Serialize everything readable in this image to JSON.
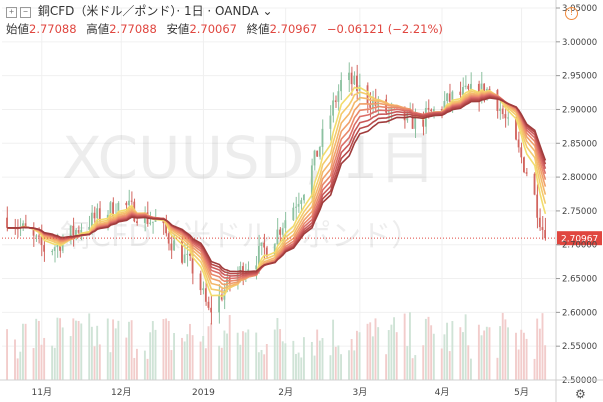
{
  "header": {
    "title": "銅CFD（米ドル／ポンド）· 1日 · OANDA",
    "timeframe_caret": "⌄",
    "ohlc": [
      {
        "label": "始値",
        "value": "2.77088"
      },
      {
        "label": "高値",
        "value": "2.77088"
      },
      {
        "label": "安値",
        "value": "2.70067"
      },
      {
        "label": "終値",
        "value": "2.70967"
      }
    ],
    "change": "−0.06121 (−2.21%)",
    "button_plus": "+",
    "button_minus": "−",
    "alert_glyph": "!"
  },
  "watermark": {
    "symbol": "XCUUSD",
    "interval": "1日",
    "name": "銅CFD（米ドル／ポンド）"
  },
  "price_axis": {
    "ticks": [
      "3.05000",
      "3.00000",
      "2.95000",
      "2.90000",
      "2.85000",
      "2.80000",
      "2.75000",
      "2.70000",
      "2.65000",
      "2.60000",
      "2.55000",
      "2.50000"
    ],
    "last_price_label": "2.70967"
  },
  "time_axis": {
    "ticks": [
      "11月",
      "12月",
      "2019",
      "2月",
      "3月",
      "4月",
      "5月"
    ]
  },
  "settings_icon": "⚙",
  "colors": {
    "up": "#8cc1a0",
    "down": "#d2655f",
    "volume_up": "#cfe3d6",
    "volume_down": "#f2cccb",
    "last_price": "#e0463f",
    "ma_ribbon": [
      "#f2dc6d",
      "#f4cb6c",
      "#f4b86c",
      "#f0a06b",
      "#e9886b",
      "#dc6e68",
      "#c95a5a",
      "#b84a4a",
      "#a03c3c"
    ]
  },
  "chart_data": {
    "type": "candlestick",
    "x": [
      "2018-10-20",
      "2018-11-03",
      "2018-11-17",
      "2018-12-01",
      "2018-12-15",
      "2018-12-29",
      "2019-01-03",
      "2019-01-12",
      "2019-01-26",
      "2019-02-09",
      "2019-02-23",
      "2019-03-09",
      "2019-03-23",
      "2019-04-06",
      "2019-04-20",
      "2019-05-04",
      "2019-05-10"
    ],
    "close": [
      2.74,
      2.69,
      2.73,
      2.76,
      2.73,
      2.66,
      2.6,
      2.65,
      2.7,
      2.79,
      2.95,
      2.9,
      2.88,
      2.92,
      2.93,
      2.8,
      2.70967
    ],
    "ylim": [
      2.5,
      3.05
    ],
    "last_price": 2.70967,
    "moving_average_ribbon": {
      "count": 9,
      "note": "multiple exponential moving averages forming a ribbon"
    },
    "volume": true,
    "grid": true
  }
}
